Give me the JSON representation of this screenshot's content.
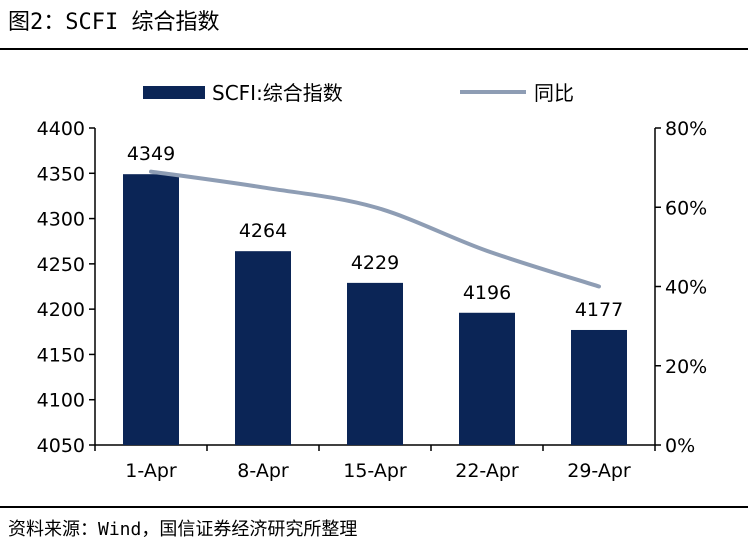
{
  "figure": {
    "title": "图2：SCFI 综合指数",
    "source": "资料来源：Wind，国信证券经济研究所整理"
  },
  "colors": {
    "bar": "#0b2556",
    "line": "#8e9db4",
    "axis": "#000000",
    "text": "#000000"
  },
  "chart_data": {
    "type": "bar",
    "categories": [
      "1-Apr",
      "8-Apr",
      "15-Apr",
      "22-Apr",
      "29-Apr"
    ],
    "series": [
      {
        "name": "SCFI:综合指数",
        "type": "bar",
        "axis": "left",
        "values": [
          4349,
          4264,
          4229,
          4196,
          4177
        ]
      },
      {
        "name": "同比",
        "type": "line",
        "axis": "right",
        "values": [
          0.69,
          0.65,
          0.6,
          0.49,
          0.4
        ]
      }
    ],
    "data_labels": [
      "4349",
      "4264",
      "4229",
      "4196",
      "4177"
    ],
    "y_left": {
      "min": 4050,
      "max": 4400,
      "ticks": [
        "4050",
        "4100",
        "4150",
        "4200",
        "4250",
        "4300",
        "4350",
        "4400"
      ]
    },
    "y_right": {
      "min": 0,
      "max": 0.8,
      "ticks": [
        "0%",
        "20%",
        "40%",
        "60%",
        "80%"
      ]
    },
    "grid": false,
    "legend_position": "top"
  }
}
